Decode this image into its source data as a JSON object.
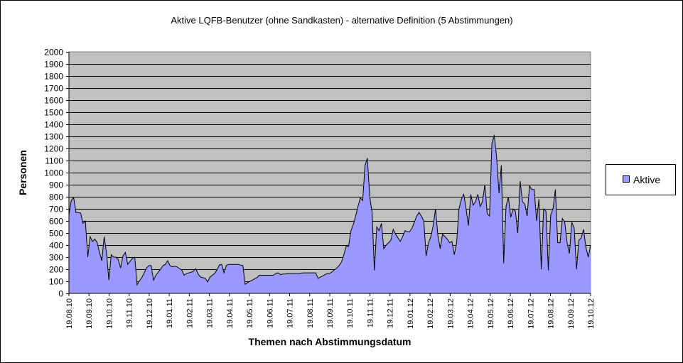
{
  "chart_data": {
    "type": "area",
    "title": "Aktive LQFB-Benutzer (ohne Sandkasten) - alternative Definition (5 Abstimmungen)",
    "xlabel": "Themen nach Abstimmungsdatum",
    "ylabel": "Personen",
    "ylim": [
      0,
      2000
    ],
    "yticks": [
      0,
      100,
      200,
      300,
      400,
      500,
      600,
      700,
      800,
      900,
      1000,
      1100,
      1200,
      1300,
      1400,
      1500,
      1600,
      1700,
      1800,
      1900,
      2000
    ],
    "grid": true,
    "legend_position": "right",
    "x_tick_labels": [
      "19.08.10",
      "19.09.10",
      "19.10.10",
      "19.11.10",
      "19.12.10",
      "19.01.11",
      "19.02.11",
      "19.03.11",
      "19.04.11",
      "19.05.11",
      "19.06.11",
      "19.07.11",
      "19.08.11",
      "19.09.11",
      "19.10.11",
      "19.11.11",
      "19.12.11",
      "19.01.12",
      "19.02.12",
      "19.03.12",
      "19.04.12",
      "19.05.12",
      "19.06.12",
      "19.07.12",
      "19.08.12",
      "19.09.12",
      "19.10.12"
    ],
    "series": [
      {
        "name": "Aktive",
        "color": "#9999ff",
        "values": [
          650,
          770,
          795,
          670,
          670,
          665,
          580,
          600,
          300,
          470,
          430,
          450,
          420,
          340,
          270,
          470,
          330,
          110,
          320,
          300,
          300,
          280,
          210,
          310,
          340,
          240,
          265,
          290,
          300,
          70,
          105,
          130,
          170,
          210,
          230,
          230,
          110,
          150,
          175,
          200,
          230,
          240,
          270,
          230,
          220,
          225,
          220,
          205,
          195,
          150,
          165,
          170,
          175,
          185,
          205,
          160,
          135,
          130,
          125,
          95,
          135,
          150,
          165,
          195,
          235,
          240,
          170,
          230,
          240,
          240,
          240,
          240,
          240,
          235,
          230,
          75,
          90,
          100,
          110,
          120,
          130,
          150,
          150,
          150,
          150,
          150,
          150,
          150,
          165,
          170,
          155,
          160,
          160,
          165,
          165,
          165,
          165,
          165,
          165,
          168,
          170,
          170,
          170,
          170,
          170,
          170,
          125,
          135,
          145,
          155,
          165,
          165,
          180,
          195,
          210,
          230,
          260,
          320,
          390,
          390,
          520,
          570,
          640,
          720,
          790,
          770,
          1060,
          1120,
          800,
          670,
          190,
          550,
          520,
          580,
          370,
          400,
          420,
          440,
          530,
          490,
          460,
          430,
          470,
          520,
          510,
          510,
          540,
          590,
          640,
          670,
          640,
          600,
          310,
          420,
          470,
          560,
          700,
          480,
          370,
          490,
          470,
          450,
          420,
          430,
          320,
          420,
          700,
          780,
          820,
          700,
          560,
          820,
          730,
          760,
          820,
          720,
          760,
          900,
          660,
          640,
          1240,
          1310,
          1130,
          830,
          1060,
          250,
          720,
          800,
          630,
          700,
          680,
          500,
          930,
          760,
          740,
          640,
          890,
          860,
          860,
          600,
          780,
          200,
          700,
          680,
          190,
          650,
          700,
          860,
          420,
          420,
          620,
          590,
          420,
          330,
          590,
          540,
          200,
          440,
          460,
          530,
          380,
          300,
          400
        ]
      }
    ]
  }
}
